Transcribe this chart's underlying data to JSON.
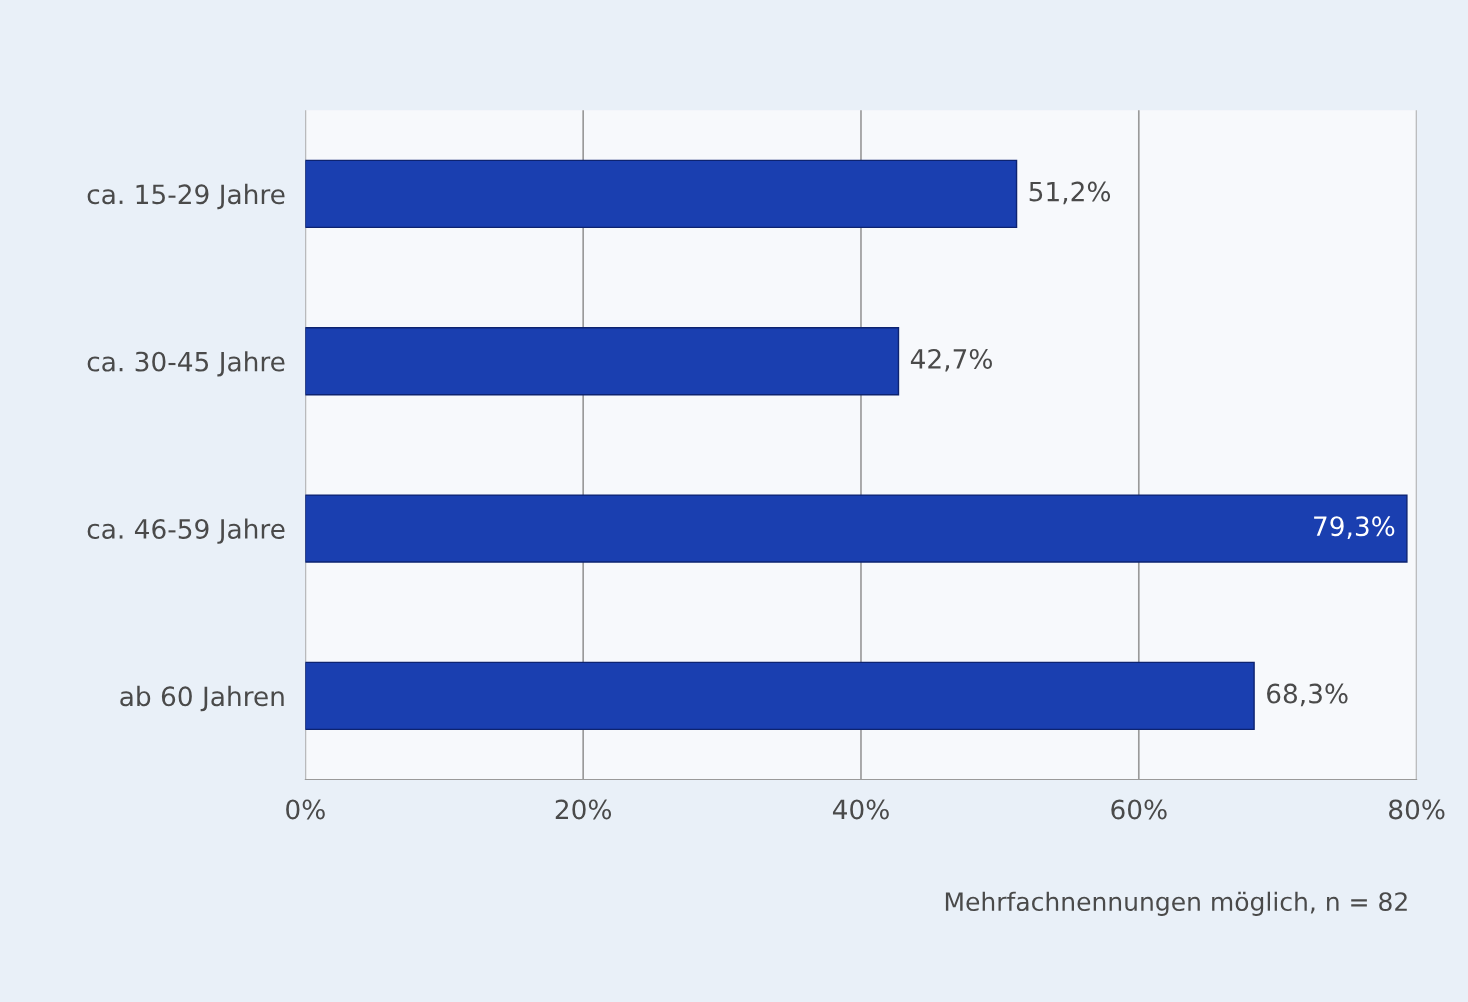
{
  "chart_data": {
    "type": "bar",
    "orientation": "horizontal",
    "categories": [
      "ca. 15-29 Jahre",
      "ca. 30-45 Jahre",
      "ca. 46-59 Jahre",
      "ab 60 Jahren"
    ],
    "values": [
      51.2,
      42.7,
      79.3,
      68.3
    ],
    "value_labels": [
      "51,2%",
      "42,7%",
      "79,3%",
      "68,3%"
    ],
    "color": "#1a3fb0",
    "xlim": [
      0,
      80
    ],
    "xticks": [
      {
        "value": 0,
        "label": "0%"
      },
      {
        "value": 20,
        "label": "20%"
      },
      {
        "value": 40,
        "label": "40%"
      },
      {
        "value": 60,
        "label": "60%"
      },
      {
        "value": 80,
        "label": "80%"
      }
    ],
    "grid": "x",
    "legend": false,
    "annotations": [
      "Mehrfachnennungen möglich, n = 82"
    ]
  }
}
